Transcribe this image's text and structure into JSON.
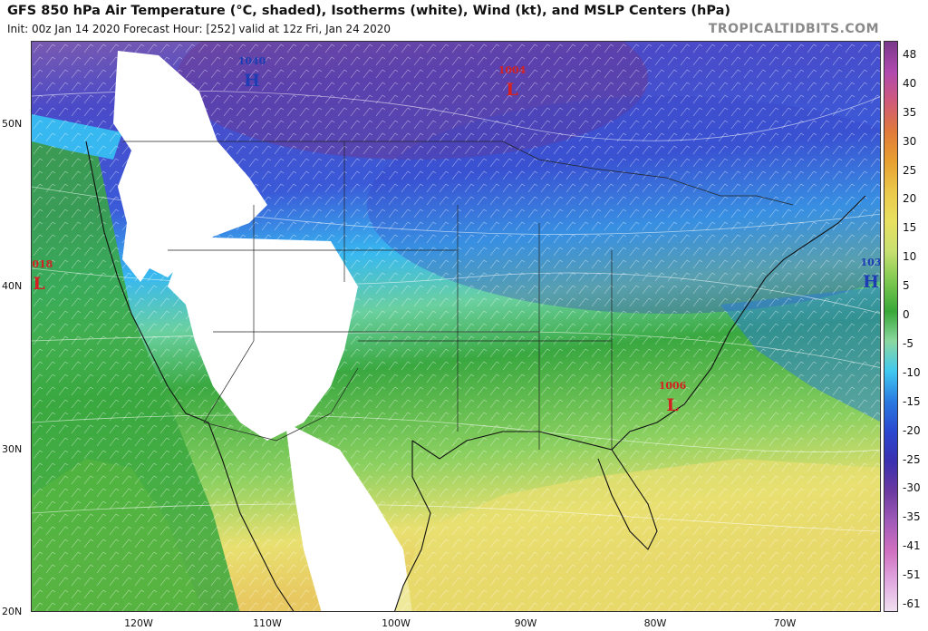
{
  "title": "GFS 850 hPa Air Temperature (°C, shaded), Isotherms (white), Wind (kt), and MSLP Centers (hPa)",
  "subtitle": "Init: 00z Jan 14 2020   Forecast Hour: [252]   valid at 12z Fri, Jan 24 2020",
  "branding": "TROPICALTIDBITS.COM",
  "lat_labels": [
    "50N",
    "40N",
    "30N",
    "20N"
  ],
  "lon_labels": [
    "120W",
    "110W",
    "100W",
    "90W",
    "80W",
    "70W"
  ],
  "colorbar": {
    "ticks": [
      "48",
      "40",
      "35",
      "30",
      "25",
      "20",
      "15",
      "10",
      "5",
      "0",
      "-5",
      "-10",
      "-15",
      "-20",
      "-25",
      "-30",
      "-35",
      "-41",
      "-51",
      "-61"
    ],
    "colors": [
      "#7a3a8a",
      "#b04ab0",
      "#d05a7a",
      "#e07a3a",
      "#e8a030",
      "#eac84a",
      "#e8e060",
      "#c8e070",
      "#7cc850",
      "#38a838",
      "#8ad8a0",
      "#40c8f0",
      "#2a7ae0",
      "#2a48d0",
      "#3a30b0",
      "#6a3aa0",
      "#a05ab8",
      "#d070c0",
      "#e0a8e0",
      "#f0e0f0"
    ]
  },
  "pressure_centers": [
    {
      "type": "H",
      "value": "1040",
      "color": "#1e3cb4"
    },
    {
      "type": "L",
      "value": "1004",
      "color": "#d42020"
    },
    {
      "type": "L",
      "value": "1018",
      "color": "#d42020"
    },
    {
      "type": "L",
      "value": "1006",
      "color": "#d42020"
    },
    {
      "type": "H",
      "value": "103",
      "color": "#1e3cb4"
    }
  ]
}
